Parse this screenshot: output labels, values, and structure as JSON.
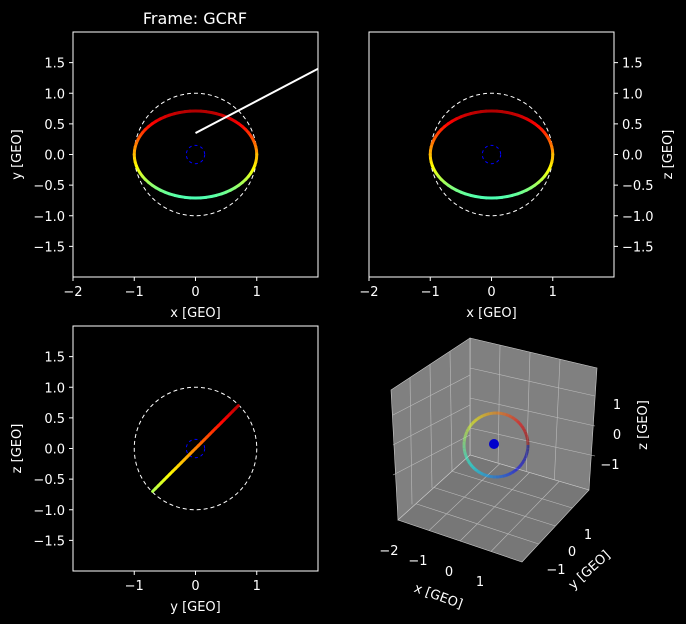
{
  "figure": {
    "title": "Frame: GCRF",
    "background": "#000000",
    "foreground": "#ffffff"
  },
  "chart_data": [
    {
      "type": "line",
      "panel": "top-left",
      "xlabel": "x [GEO]",
      "ylabel": "y [GEO]",
      "xlim": [
        -2,
        2
      ],
      "ylim": [
        -2,
        2
      ],
      "xticks": [
        -2,
        -1,
        0,
        1
      ],
      "yticks": [
        -1.5,
        -1.0,
        -0.5,
        0.0,
        0.5,
        1.0,
        1.5
      ],
      "ytick_labels": [
        "−1.5",
        "−1.0",
        "−0.5",
        "0.0",
        "0.5",
        "1.0",
        "1.5"
      ],
      "xtick_labels": [
        "−2",
        "−1",
        "0",
        "1"
      ],
      "yaxis_side": "left",
      "orbit": {
        "cx": 0,
        "cy": 0,
        "rx": 1.0,
        "ry": 0.71
      },
      "geo_ring": {
        "r": 1.0,
        "color": "#ffffff",
        "style": "dashed"
      },
      "earth": {
        "r": 0.15,
        "color": "#0000ff",
        "style": "dashed"
      },
      "extra_line": {
        "x": [
          0.0,
          2.0
        ],
        "y": [
          0.35,
          1.4
        ],
        "color": "#ffffff"
      }
    },
    {
      "type": "line",
      "panel": "top-right",
      "xlabel": "x [GEO]",
      "ylabel": "z [GEO]",
      "xlim": [
        -2,
        2
      ],
      "ylim": [
        -2,
        2
      ],
      "xticks": [
        -2,
        -1,
        0,
        1
      ],
      "yticks": [
        -1.5,
        -1.0,
        -0.5,
        0.0,
        0.5,
        1.0,
        1.5
      ],
      "ytick_labels": [
        "−1.5",
        "−1.0",
        "−0.5",
        "0.0",
        "0.5",
        "1.0",
        "1.5"
      ],
      "xtick_labels": [
        "−2",
        "−1",
        "0",
        "1"
      ],
      "yaxis_side": "right",
      "orbit": {
        "cx": 0,
        "cy": 0,
        "rx": 1.0,
        "ry": 0.71
      },
      "geo_ring": {
        "r": 1.0,
        "color": "#ffffff",
        "style": "dashed"
      },
      "earth": {
        "r": 0.15,
        "color": "#0000ff",
        "style": "dashed"
      }
    },
    {
      "type": "line",
      "panel": "bottom-left",
      "xlabel": "y [GEO]",
      "ylabel": "z [GEO]",
      "xlim": [
        -2,
        2
      ],
      "ylim": [
        -2,
        2
      ],
      "xticks": [
        -1,
        0,
        1
      ],
      "yticks": [
        -1.5,
        -1.0,
        -0.5,
        0.0,
        0.5,
        1.0,
        1.5
      ],
      "ytick_labels": [
        "−1.5",
        "−1.0",
        "−0.5",
        "0.0",
        "0.5",
        "1.0",
        "1.5"
      ],
      "xtick_labels": [
        "−1",
        "0",
        "1"
      ],
      "yaxis_side": "left",
      "segment": {
        "x": [
          -0.7,
          0.7
        ],
        "y": [
          -0.7,
          0.7
        ]
      },
      "geo_ring": {
        "r": 1.0,
        "color": "#ffffff",
        "style": "dashed"
      },
      "earth": {
        "r": 0.15,
        "color": "#0000ff",
        "style": "dashed"
      }
    },
    {
      "type": "scatter",
      "panel": "bottom-right-3d",
      "xlabel": "x [GEO]",
      "ylabel": "y [GEO]",
      "zlabel": "z [GEO]",
      "xtick_labels": [
        "−2",
        "−1",
        "0",
        "1"
      ],
      "ytick_labels": [
        "−1",
        "0",
        "1"
      ],
      "ztick_labels": [
        "−1",
        "0",
        "1"
      ],
      "pane_color": "#808080",
      "earth_color": "#0000cc"
    }
  ]
}
